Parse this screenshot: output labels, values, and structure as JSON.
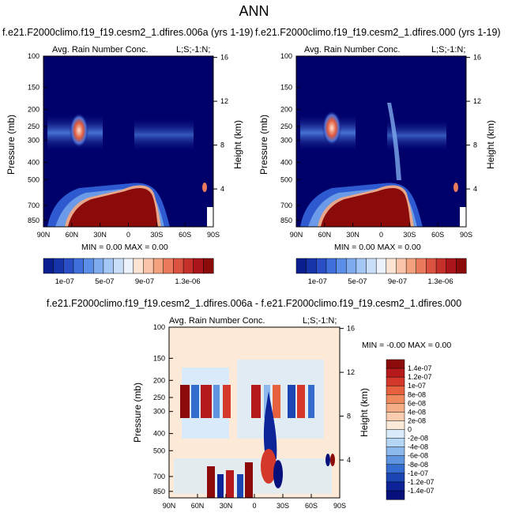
{
  "page": {
    "title": "ANN",
    "colors": {
      "frame": "#000000",
      "background_field": "#00006b",
      "diff_background": "#fde9d8"
    }
  },
  "chart_data": [
    {
      "id": "panel-left",
      "type": "heatmap",
      "case": "f.e21.F2000climo.f19_f19.cesm2_1.dfires.006a (yrs 1-19)",
      "variable": "Avg. Rain Number Conc.",
      "corner_label": "L;S;-1:N;",
      "stats": "MIN =  0.00  MAX =  0.00",
      "ylabel": "Pressure (mb)",
      "y2label": "Height (km)",
      "x_ticks": [
        "90N",
        "60N",
        "30N",
        "0",
        "30S",
        "60S",
        "90S"
      ],
      "y_ticks": [
        100,
        150,
        200,
        250,
        300,
        400,
        500,
        700,
        850
      ],
      "ylim": [
        100,
        925
      ],
      "y2_ticks": [
        16,
        12,
        8,
        4
      ],
      "colorbar_ticks": [
        "1e-07",
        "5e-07",
        "9e-07",
        "1.3e-06"
      ]
    },
    {
      "id": "panel-right",
      "type": "heatmap",
      "case": "f.e21.F2000climo.f19_f19.cesm2_1.dfires.000 (yrs 1-19)",
      "variable": "Avg. Rain Number Conc.",
      "corner_label": "L;S;-1:N;",
      "stats": "MIN =  0.00  MAX =  0.00",
      "ylabel": "Pressure (mb)",
      "y2label": "Height (km)",
      "x_ticks": [
        "90N",
        "60N",
        "30N",
        "0",
        "30S",
        "60S",
        "90S"
      ],
      "y_ticks": [
        100,
        150,
        200,
        250,
        300,
        400,
        500,
        700,
        850
      ],
      "ylim": [
        100,
        925
      ],
      "y2_ticks": [
        16,
        12,
        8,
        4
      ],
      "colorbar_ticks": [
        "1e-07",
        "5e-07",
        "9e-07",
        "1.3e-06"
      ]
    },
    {
      "id": "panel-diff",
      "type": "heatmap",
      "title": "f.e21.F2000climo.f19_f19.cesm2_1.dfires.006a - f.e21.F2000climo.f19_f19.cesm2_1.dfires.000",
      "variable": "Avg. Rain Number Conc.",
      "corner_label": "L;S;-1:N;",
      "stats": "MIN = -0.00  MAX =  0.00",
      "ylabel": "Pressure (mb)",
      "y2label": "Height (km)",
      "x_ticks": [
        "90N",
        "60N",
        "30N",
        "0",
        "30S",
        "60S",
        "90S"
      ],
      "y_ticks": [
        100,
        150,
        200,
        250,
        300,
        400,
        500,
        700,
        850
      ],
      "ylim": [
        100,
        925
      ],
      "y2_ticks": [
        16,
        12,
        8,
        4
      ],
      "colorbar_labels": [
        "1.4e-07",
        "1.2e-07",
        "1e-07",
        "8e-08",
        "6e-08",
        "4e-08",
        "2e-08",
        "0",
        "-2e-08",
        "-4e-08",
        "-6e-08",
        "-8e-08",
        "-1e-07",
        "-1.2e-07",
        "-1.4e-07"
      ]
    }
  ],
  "colormaps": {
    "sequential": [
      "#0a1e8f",
      "#1733a8",
      "#2a4fc4",
      "#3f6fd8",
      "#5b8ee6",
      "#7eaaee",
      "#a4c6f4",
      "#c9def8",
      "#ebf2fb",
      "#fde4d4",
      "#f9c4a8",
      "#f3a07f",
      "#e97a5c",
      "#db5340",
      "#c6302a",
      "#a9151a",
      "#8b0a0a"
    ],
    "diverging": [
      "#8b0a0a",
      "#b5191b",
      "#d3382b",
      "#e8613f",
      "#f08a5e",
      "#f5ad86",
      "#f9ccb0",
      "#fde9d8",
      "#d9ebfa",
      "#b5d6f4",
      "#8bb9ec",
      "#5e94e0",
      "#356ccf",
      "#1c45b4",
      "#0d2498",
      "#05107a"
    ]
  }
}
